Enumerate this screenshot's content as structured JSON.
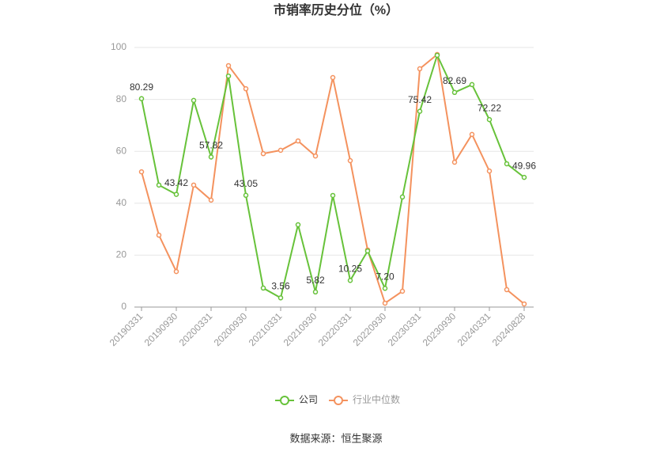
{
  "chart_data": {
    "type": "line",
    "title": "市销率历史分位（%）",
    "source": "数据来源：恒生聚源",
    "categories": [
      "20190331",
      null,
      "20190930",
      null,
      "20200331",
      null,
      "20200930",
      null,
      "20210331",
      null,
      "20210930",
      null,
      "20220331",
      null,
      "20220930",
      null,
      "20230331",
      null,
      "20230930",
      null,
      "20240331",
      null,
      "20240828"
    ],
    "series": [
      {
        "name": "公司",
        "color": "#67c23a",
        "values": [
          80.29,
          47,
          43.42,
          79.6,
          57.82,
          89.0,
          43.05,
          7.3,
          3.56,
          31.7,
          5.82,
          43.0,
          10.25,
          21.6,
          7.2,
          42.4,
          75.42,
          97.0,
          82.69,
          85.7,
          72.22,
          55.2,
          49.96
        ],
        "value_labels": [
          "80.29",
          null,
          "43.42",
          null,
          "57.82",
          null,
          "43.05",
          null,
          "3.56",
          null,
          "5.82",
          null,
          "10.25",
          null,
          "7.20",
          null,
          "75.42",
          null,
          "82.69",
          null,
          "72.22",
          null,
          "49.96"
        ]
      },
      {
        "name": "行业中位数",
        "color": "#f4925e",
        "values": [
          52.1,
          27.7,
          13.7,
          47,
          41.2,
          93.0,
          84.1,
          59.1,
          60.4,
          64.0,
          58.2,
          88.4,
          56.4,
          22.0,
          1.5,
          6.1,
          91.8,
          97.3,
          55.8,
          66.5,
          52.4,
          6.7,
          1.2
        ]
      }
    ],
    "ylim": [
      0,
      100
    ],
    "yticks": [
      0,
      20,
      40,
      60,
      80,
      100
    ],
    "grid": true,
    "legend": "bottom"
  }
}
